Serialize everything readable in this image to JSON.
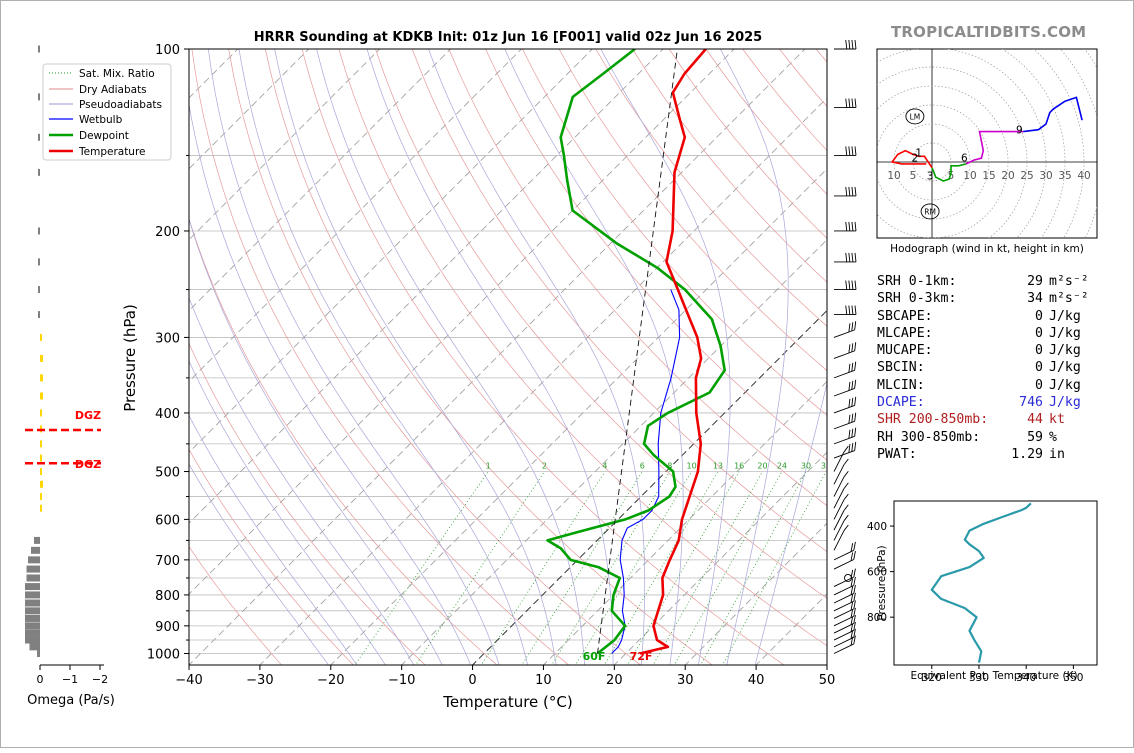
{
  "brand": "TROPICALTIDBITS.COM",
  "title": "HRRR Sounding at KDKB Init: 01z Jun 16 [F001] valid 02z Jun 16 2025",
  "skewt": {
    "xlabel": "Temperature (°C)",
    "ylabel": "Pressure (hPa)",
    "xticks": [
      "−40",
      "−30",
      "−20",
      "−10",
      "0",
      "10",
      "20",
      "30",
      "40",
      "50"
    ],
    "yticks": [
      "100",
      "200",
      "300",
      "400",
      "500",
      "600",
      "700",
      "800",
      "900",
      "1000"
    ],
    "legend": [
      "Sat. Mix. Ratio",
      "Dry Adiabats",
      "Pseudoadiabats",
      "Wetbulb",
      "Dewpoint",
      "Temperature"
    ],
    "mixing_ratio_labels": [
      "1",
      "2",
      "4",
      "6",
      "8",
      "10",
      "13",
      "16",
      "20",
      "24",
      "30",
      "36"
    ],
    "surface_dewpoint_label": "60F",
    "surface_temperature_label": "72F"
  },
  "omega": {
    "xlabel": "Omega (Pa/s)",
    "xticks": [
      "0",
      "−1",
      "−2"
    ],
    "dgz_label": "DGZ"
  },
  "hodograph": {
    "caption": "Hodograph (wind in kt, height in km)",
    "ring_labels": [
      "10",
      "5",
      "5",
      "10",
      "15",
      "20",
      "25",
      "30",
      "35",
      "40"
    ],
    "height_labels": [
      "1",
      "2",
      "3",
      "6",
      "9"
    ],
    "lm": "LM",
    "rm": "RM"
  },
  "params": [
    {
      "label": "SRH 0-1km:",
      "value": "29",
      "unit": "m²s⁻²",
      "color": "#000000"
    },
    {
      "label": "SRH 0-3km:",
      "value": "34",
      "unit": "m²s⁻²",
      "color": "#000000"
    },
    {
      "label": "SBCAPE:",
      "value": "0",
      "unit": "J/kg",
      "color": "#000000"
    },
    {
      "label": "MLCAPE:",
      "value": "0",
      "unit": "J/kg",
      "color": "#000000"
    },
    {
      "label": "MUCAPE:",
      "value": "0",
      "unit": "J/kg",
      "color": "#000000"
    },
    {
      "label": "SBCIN:",
      "value": "0",
      "unit": "J/kg",
      "color": "#000000"
    },
    {
      "label": "MLCIN:",
      "value": "0",
      "unit": "J/kg",
      "color": "#000000"
    },
    {
      "label": "DCAPE:",
      "value": "746",
      "unit": "J/kg",
      "color": "#2b2bd6"
    },
    {
      "label": "SHR 200-850mb:",
      "value": "44",
      "unit": "kt",
      "color": "#b02020"
    },
    {
      "label": "RH 300-850mb:",
      "value": "59",
      "unit": "%",
      "color": "#000000"
    },
    {
      "label": "PWAT:",
      "value": "1.29",
      "unit": "in",
      "color": "#000000"
    }
  ],
  "theta_e": {
    "xlabel": "Equivalent Pot. Temperature (K)",
    "ylabel": "Pressure (hPa)",
    "xticks": [
      "320",
      "330",
      "340",
      "350"
    ],
    "yticks": [
      "400",
      "600",
      "800"
    ]
  },
  "colors": {
    "temperature": "#ee0000",
    "dewpoint": "#00a000",
    "wetbulb": "#0000ff",
    "theta_e": "#2a9aaa",
    "dgz": "#ff0000",
    "omega_pos": "#ffd700",
    "omega_neg": "#808080"
  },
  "chart_data": [
    {
      "type": "line",
      "chart": "skew-t",
      "xlim": [
        -40,
        50
      ],
      "ylim": [
        1050,
        100
      ],
      "y_scale": "log",
      "series": [
        {
          "name": "Temperature",
          "points": [
            [
              22.0,
              1000
            ],
            [
              25.0,
              975
            ],
            [
              22.5,
              950
            ],
            [
              20.0,
              900
            ],
            [
              17.0,
              800
            ],
            [
              14.5,
              750
            ],
            [
              13.0,
              700
            ],
            [
              11.5,
              650
            ],
            [
              9.0,
              600
            ],
            [
              4.5,
              500
            ],
            [
              1.0,
              450
            ],
            [
              -4.0,
              400
            ],
            [
              -9.0,
              350
            ],
            [
              -11.0,
              325
            ],
            [
              -14.5,
              300
            ],
            [
              -20.0,
              270
            ],
            [
              -24.0,
              250
            ],
            [
              -29.5,
              225
            ],
            [
              -33.0,
              200
            ],
            [
              -41.0,
              160
            ],
            [
              -44.5,
              140
            ],
            [
              -48.0,
              130
            ],
            [
              -52.5,
              118
            ],
            [
              -53.5,
              110
            ],
            [
              -54.0,
              100
            ]
          ]
        },
        {
          "name": "Dewpoint",
          "points": [
            [
              16.0,
              1000
            ],
            [
              16.5,
              950
            ],
            [
              16.0,
              900
            ],
            [
              12.0,
              850
            ],
            [
              10.0,
              800
            ],
            [
              8.5,
              750
            ],
            [
              4.0,
              720
            ],
            [
              -1.0,
              700
            ],
            [
              -4.0,
              670
            ],
            [
              -7.0,
              650
            ],
            [
              -4.0,
              630
            ],
            [
              1.0,
              600
            ],
            [
              3.0,
              580
            ],
            [
              4.0,
              550
            ],
            [
              3.5,
              530
            ],
            [
              1.0,
              500
            ],
            [
              -4.0,
              470
            ],
            [
              -7.0,
              450
            ],
            [
              -9.0,
              420
            ],
            [
              -8.0,
              400
            ],
            [
              -5.0,
              370
            ],
            [
              -6.0,
              340
            ],
            [
              -10.0,
              310
            ],
            [
              -15.0,
              280
            ],
            [
              -23.0,
              250
            ],
            [
              -30.0,
              230
            ],
            [
              -39.0,
              210
            ],
            [
              -50.0,
              185
            ],
            [
              -55.0,
              165
            ],
            [
              -59.0,
              150
            ],
            [
              -62.0,
              140
            ],
            [
              -66.0,
              120
            ],
            [
              -65.0,
              110
            ],
            [
              -64.0,
              100
            ]
          ]
        },
        {
          "name": "Wetbulb",
          "points": [
            [
              18.0,
              1000
            ],
            [
              18.0,
              975
            ],
            [
              17.5,
              950
            ],
            [
              16.0,
              900
            ],
            [
              13.5,
              850
            ],
            [
              11.5,
              800
            ],
            [
              9.0,
              750
            ],
            [
              6.0,
              700
            ],
            [
              3.5,
              650
            ],
            [
              2.5,
              620
            ],
            [
              3.5,
              600
            ],
            [
              3.5,
              580
            ],
            [
              2.5,
              550
            ],
            [
              -1.0,
              500
            ],
            [
              -5.0,
              450
            ],
            [
              -9.0,
              400
            ],
            [
              -12.5,
              350
            ],
            [
              -17.0,
              300
            ],
            [
              -21.0,
              270
            ],
            [
              -25.0,
              250
            ]
          ]
        }
      ]
    },
    {
      "type": "bar",
      "chart": "omega-profile",
      "xlabel": "Omega (Pa/s)",
      "series": [
        {
          "name": "Omega",
          "points": [
            [
              0.05,
              100
            ],
            [
              0.05,
              120
            ],
            [
              0.05,
              140
            ],
            [
              0.05,
              160
            ],
            [
              0.05,
              200
            ],
            [
              0.05,
              225
            ],
            [
              0.05,
              250
            ],
            [
              0.05,
              275
            ],
            [
              -0.05,
              300
            ],
            [
              -0.1,
              325
            ],
            [
              -0.1,
              350
            ],
            [
              -0.1,
              375
            ],
            [
              -0.05,
              400
            ],
            [
              -0.05,
              425
            ],
            [
              -0.05,
              450
            ],
            [
              -0.05,
              475
            ],
            [
              -0.05,
              500
            ],
            [
              -0.1,
              525
            ],
            [
              -0.05,
              550
            ],
            [
              -0.05,
              575
            ],
            [
              0.2,
              650
            ],
            [
              0.3,
              675
            ],
            [
              0.4,
              700
            ],
            [
              0.45,
              725
            ],
            [
              0.45,
              750
            ],
            [
              0.5,
              775
            ],
            [
              0.5,
              800
            ],
            [
              0.5,
              825
            ],
            [
              0.5,
              850
            ],
            [
              0.5,
              875
            ],
            [
              0.5,
              900
            ],
            [
              0.5,
              925
            ],
            [
              0.5,
              950
            ],
            [
              0.35,
              975
            ],
            [
              0.1,
              1000
            ]
          ]
        }
      ],
      "dgz_pressures": [
        414,
        470
      ]
    },
    {
      "type": "line",
      "chart": "hodograph",
      "xlim": [
        -10,
        40
      ],
      "series": [
        {
          "name": "0-1 km",
          "color": "#ff0000",
          "points": [
            [
              -1.5,
              -0.5
            ],
            [
              -8,
              -0.5
            ],
            [
              -10.5,
              0
            ],
            [
              -9,
              2
            ],
            [
              -7,
              3
            ],
            [
              -5,
              2
            ],
            [
              -3.5,
              1.5
            ],
            [
              -2,
              1.5
            ],
            [
              -1,
              0
            ],
            [
              0,
              -1.5
            ]
          ]
        },
        {
          "name": "1-3 km",
          "color": "#00a000",
          "points": [
            [
              0,
              -1.5
            ],
            [
              1,
              -4
            ],
            [
              3,
              -5
            ],
            [
              4.5,
              -4.5
            ],
            [
              5,
              -3
            ],
            [
              5,
              -1
            ],
            [
              7,
              -1
            ],
            [
              9,
              -0.5
            ]
          ]
        },
        {
          "name": "3-9 km",
          "color": "#cc00cc",
          "points": [
            [
              9,
              -0.5
            ],
            [
              11,
              0.5
            ],
            [
              13,
              1
            ],
            [
              13.5,
              3
            ],
            [
              12.5,
              8
            ],
            [
              16,
              8
            ],
            [
              20,
              8
            ],
            [
              24,
              8
            ]
          ]
        },
        {
          "name": "9+ km",
          "color": "#0000ee",
          "points": [
            [
              24,
              8
            ],
            [
              28,
              8.5
            ],
            [
              30,
              10
            ],
            [
              31,
              13
            ],
            [
              32,
              14
            ],
            [
              35,
              16
            ],
            [
              38,
              17
            ],
            [
              39.5,
              11
            ]
          ]
        }
      ]
    },
    {
      "type": "line",
      "chart": "theta-e",
      "xlabel": "Equivalent Pot. Temperature (K)",
      "ylabel": "Pressure (hPa)",
      "xlim": [
        312,
        355
      ],
      "ylim": [
        1010,
        290
      ],
      "series": [
        {
          "name": "Theta-E",
          "points": [
            [
              330,
              1000
            ],
            [
              330.5,
              950
            ],
            [
              329,
              900
            ],
            [
              328,
              860
            ],
            [
              329,
              820
            ],
            [
              329.5,
              800
            ],
            [
              327,
              760
            ],
            [
              322,
              720
            ],
            [
              320,
              680
            ],
            [
              322,
              620
            ],
            [
              328,
              580
            ],
            [
              331,
              540
            ],
            [
              330,
              510
            ],
            [
              328,
              480
            ],
            [
              327,
              460
            ],
            [
              328,
              420
            ],
            [
              331,
              390
            ],
            [
              335,
              360
            ],
            [
              339,
              330
            ],
            [
              340,
              320
            ],
            [
              341,
              300
            ]
          ]
        }
      ]
    }
  ]
}
